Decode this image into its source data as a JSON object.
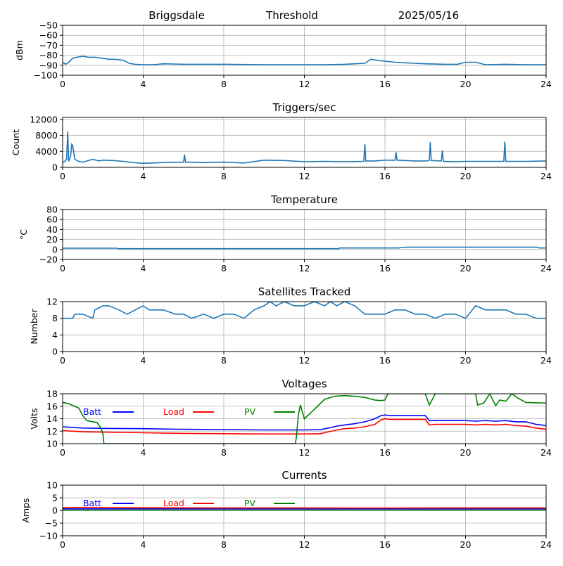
{
  "header": {
    "station": "Briggsdale",
    "label": "Threshold",
    "date": "2025/05/16"
  },
  "colors": {
    "line": "#1f77b4",
    "batt": "#0000ff",
    "load": "#ff0000",
    "pv": "#008000",
    "grid": "#b0b0b0",
    "axis": "#000000"
  },
  "chart_data": [
    {
      "type": "line",
      "title": "",
      "ylabel": "dBm",
      "xlim": [
        0,
        24
      ],
      "ylim": [
        -100,
        -50
      ],
      "xticks": [
        0,
        4,
        8,
        12,
        16,
        20,
        24
      ],
      "yticks": [
        -100,
        -90,
        -80,
        -70,
        -60,
        -50
      ],
      "grid": true,
      "legend": false,
      "series": [
        {
          "x": [
            0,
            0.15,
            0.3,
            0.5,
            0.7,
            1.0,
            1.3,
            1.6,
            2.0,
            2.3,
            2.6,
            3.0,
            3.3,
            3.6,
            4.0,
            4.5,
            5.0,
            6.0,
            7.0,
            8.0,
            10.0,
            12.0,
            13.0,
            14.0,
            15.0,
            15.3,
            15.6,
            16.0,
            16.5,
            17.0,
            17.5,
            18.0,
            19.0,
            19.6,
            20.0,
            20.5,
            21.0,
            22.0,
            23.0,
            24.0
          ],
          "y": [
            -87,
            -89,
            -87,
            -83,
            -82,
            -81,
            -82,
            -82,
            -83,
            -84,
            -84,
            -85,
            -88,
            -89,
            -89.5,
            -89.5,
            -88.5,
            -89,
            -89,
            -89,
            -89.5,
            -89.5,
            -89.5,
            -89,
            -88,
            -84,
            -85,
            -86,
            -87,
            -87.5,
            -88,
            -88.5,
            -89,
            -89,
            -87,
            -87,
            -89.5,
            -89,
            -89.5,
            -89.5
          ]
        }
      ]
    },
    {
      "type": "line",
      "title": "Triggers/sec",
      "ylabel": "Count",
      "xlim": [
        0,
        24
      ],
      "ylim": [
        0,
        12500
      ],
      "xticks": [
        0,
        4,
        8,
        12,
        16,
        20,
        24
      ],
      "yticks": [
        0,
        4000,
        8000,
        12000
      ],
      "grid": true,
      "legend": false,
      "series": [
        {
          "x": [
            0,
            0.1,
            0.2,
            0.25,
            0.3,
            0.4,
            0.45,
            0.5,
            0.6,
            0.8,
            1.0,
            1.5,
            1.8,
            2.0,
            2.5,
            3.0,
            3.5,
            4.0,
            5.0,
            6.0,
            6.05,
            6.1,
            7.0,
            8.0,
            9.0,
            10.0,
            11.0,
            12.0,
            13.0,
            14.0,
            14.95,
            15.0,
            15.05,
            15.5,
            16.0,
            16.5,
            16.55,
            16.6,
            17.0,
            17.5,
            18.0,
            18.2,
            18.25,
            18.3,
            18.8,
            18.85,
            18.9,
            19.5,
            20.0,
            21.0,
            21.9,
            21.95,
            22.0,
            23.0,
            24.0
          ],
          "y": [
            1200,
            1500,
            2000,
            9000,
            1500,
            3000,
            5800,
            5500,
            2000,
            1500,
            1300,
            2000,
            1600,
            1800,
            1700,
            1500,
            1200,
            1000,
            1200,
            1300,
            3200,
            1300,
            1200,
            1300,
            1100,
            1800,
            1700,
            1400,
            1500,
            1400,
            1500,
            5800,
            1600,
            1600,
            1800,
            1800,
            3800,
            1800,
            1700,
            1600,
            1600,
            1700,
            6300,
            1700,
            1600,
            4200,
            1500,
            1400,
            1500,
            1500,
            1500,
            6400,
            1500,
            1500,
            1600
          ]
        }
      ]
    },
    {
      "type": "line",
      "title": "Temperature",
      "ylabel": "°C",
      "xlim": [
        0,
        24
      ],
      "ylim": [
        -20,
        80
      ],
      "xticks": [
        0,
        4,
        8,
        12,
        16,
        20,
        24
      ],
      "yticks": [
        -20,
        0,
        20,
        40,
        60,
        80
      ],
      "grid": true,
      "legend": false,
      "series": [
        {
          "x": [
            0,
            2.7,
            2.75,
            13.7,
            13.75,
            16.7,
            16.75,
            17.0,
            17.05,
            23.6,
            23.65,
            24
          ],
          "y": [
            2.5,
            2.5,
            1.5,
            1.5,
            3.0,
            3.0,
            4.0,
            4.0,
            4.5,
            4.5,
            3.0,
            3.0
          ]
        }
      ]
    },
    {
      "type": "line",
      "title": "Satellites Tracked",
      "ylabel": "Number",
      "xlim": [
        0,
        24
      ],
      "ylim": [
        0,
        12
      ],
      "xticks": [
        0,
        4,
        8,
        12,
        16,
        20,
        24
      ],
      "yticks": [
        0,
        4,
        8,
        12
      ],
      "grid": true,
      "legend": false,
      "series": [
        {
          "x": [
            0,
            0.5,
            0.6,
            1.0,
            1.5,
            1.6,
            2.0,
            2.3,
            2.8,
            3.2,
            3.6,
            4.0,
            4.3,
            5.0,
            5.6,
            6.0,
            6.4,
            7.0,
            7.5,
            8.0,
            8.5,
            9.0,
            9.5,
            10.0,
            10.3,
            10.6,
            11.0,
            11.5,
            12.0,
            12.5,
            13.0,
            13.3,
            13.6,
            14.0,
            14.5,
            15.0,
            15.5,
            16.0,
            16.5,
            17.0,
            17.5,
            18.0,
            18.5,
            19.0,
            19.5,
            20.0,
            20.5,
            21.0,
            21.5,
            22.0,
            22.5,
            23.0,
            23.5,
            24.0
          ],
          "y": [
            8,
            8,
            9,
            9,
            8,
            10,
            11,
            11,
            10,
            9,
            10,
            11,
            10,
            10,
            9,
            9,
            8,
            9,
            8,
            9,
            9,
            8,
            10,
            11,
            12,
            11,
            12,
            11,
            11,
            12,
            11,
            12,
            11,
            12,
            11,
            9,
            9,
            9,
            10,
            10,
            9,
            9,
            8,
            9,
            9,
            8,
            11,
            10,
            10,
            10,
            9,
            9,
            8,
            8
          ]
        }
      ]
    },
    {
      "type": "line",
      "title": "Voltages",
      "ylabel": "Volts",
      "xlim": [
        0,
        24
      ],
      "ylim": [
        10,
        18
      ],
      "xticks": [
        0,
        4,
        8,
        12,
        16,
        20,
        24
      ],
      "yticks": [
        10,
        12,
        14,
        16,
        18
      ],
      "grid": true,
      "legend": "top-left",
      "series": [
        {
          "name": "Batt",
          "color_key": "batt",
          "x": [
            0,
            1,
            2,
            4,
            6,
            8,
            10,
            12,
            12.8,
            13.2,
            13.6,
            14.0,
            14.5,
            15.0,
            15.5,
            15.8,
            16.0,
            16.2,
            16.5,
            17.0,
            17.5,
            18.0,
            18.2,
            18.5,
            19.0,
            20.0,
            20.5,
            21.0,
            21.5,
            22.0,
            22.5,
            23.0,
            23.5,
            24.0
          ],
          "y": [
            12.7,
            12.5,
            12.45,
            12.4,
            12.3,
            12.25,
            12.2,
            12.2,
            12.25,
            12.5,
            12.8,
            13.0,
            13.2,
            13.5,
            14.0,
            14.5,
            14.6,
            14.5,
            14.5,
            14.5,
            14.5,
            14.5,
            13.7,
            13.7,
            13.7,
            13.7,
            13.6,
            13.7,
            13.6,
            13.7,
            13.5,
            13.5,
            13.1,
            12.9
          ]
        },
        {
          "name": "Load",
          "color_key": "load",
          "x": [
            0,
            1,
            2,
            4,
            6,
            8,
            10,
            12,
            12.8,
            13.2,
            13.6,
            14.0,
            14.5,
            15.0,
            15.5,
            15.8,
            16.0,
            16.2,
            16.5,
            17.0,
            17.5,
            18.0,
            18.2,
            18.5,
            19.0,
            20.0,
            20.5,
            21.0,
            21.5,
            22.0,
            22.5,
            23.0,
            23.5,
            24.0
          ],
          "y": [
            12.1,
            11.9,
            11.85,
            11.75,
            11.65,
            11.6,
            11.55,
            11.55,
            11.6,
            11.9,
            12.2,
            12.4,
            12.5,
            12.7,
            13.1,
            13.8,
            14.0,
            13.9,
            13.9,
            13.9,
            13.9,
            13.9,
            13.0,
            13.1,
            13.1,
            13.1,
            13.0,
            13.1,
            13.0,
            13.1,
            12.9,
            12.8,
            12.5,
            12.3
          ]
        },
        {
          "name": "PV",
          "color_key": "pv",
          "x": [
            0,
            0.3,
            0.8,
            1.0,
            1.2,
            1.5,
            1.7,
            1.9,
            2.0,
            2.05,
            11.55,
            11.6,
            11.7,
            11.8,
            12.0,
            12.5,
            13.0,
            13.5,
            14.0,
            14.5,
            15.0,
            15.5,
            15.8,
            16.0,
            16.15,
            16.2,
            18.0,
            18.2,
            18.5,
            20.5,
            20.6,
            20.9,
            21.2,
            21.5,
            21.7,
            22.0,
            22.3,
            22.6,
            23.0,
            24.0
          ],
          "y": [
            16.6,
            16.4,
            15.7,
            14.5,
            13.7,
            13.5,
            13.4,
            12.5,
            11.5,
            10,
            10,
            11.0,
            14.5,
            16.2,
            14.0,
            15.5,
            17.1,
            17.6,
            17.7,
            17.6,
            17.4,
            17.0,
            16.9,
            17.0,
            18,
            18,
            18,
            16.2,
            18,
            18,
            16.2,
            16.5,
            18,
            16.1,
            17.0,
            16.8,
            18,
            17.3,
            16.6,
            16.5
          ]
        }
      ]
    },
    {
      "type": "line",
      "title": "Currents",
      "ylabel": "Amps",
      "xlim": [
        0,
        24
      ],
      "ylim": [
        -10,
        10
      ],
      "xticks": [
        0,
        4,
        8,
        12,
        16,
        20,
        24
      ],
      "yticks": [
        -10,
        -5,
        0,
        5,
        10
      ],
      "grid": true,
      "legend": "top-left",
      "series": [
        {
          "name": "Batt",
          "color_key": "batt",
          "x": [
            0,
            24
          ],
          "y": [
            0.6,
            0.6
          ]
        },
        {
          "name": "Load",
          "color_key": "load",
          "x": [
            0,
            1,
            4,
            8,
            12,
            16,
            20,
            24
          ],
          "y": [
            1.1,
            1.2,
            1.05,
            1.0,
            1.0,
            0.95,
            1.0,
            1.0
          ]
        },
        {
          "name": "PV",
          "color_key": "pv",
          "x": [
            0,
            24
          ],
          "y": [
            0.1,
            0.1
          ]
        }
      ]
    }
  ]
}
